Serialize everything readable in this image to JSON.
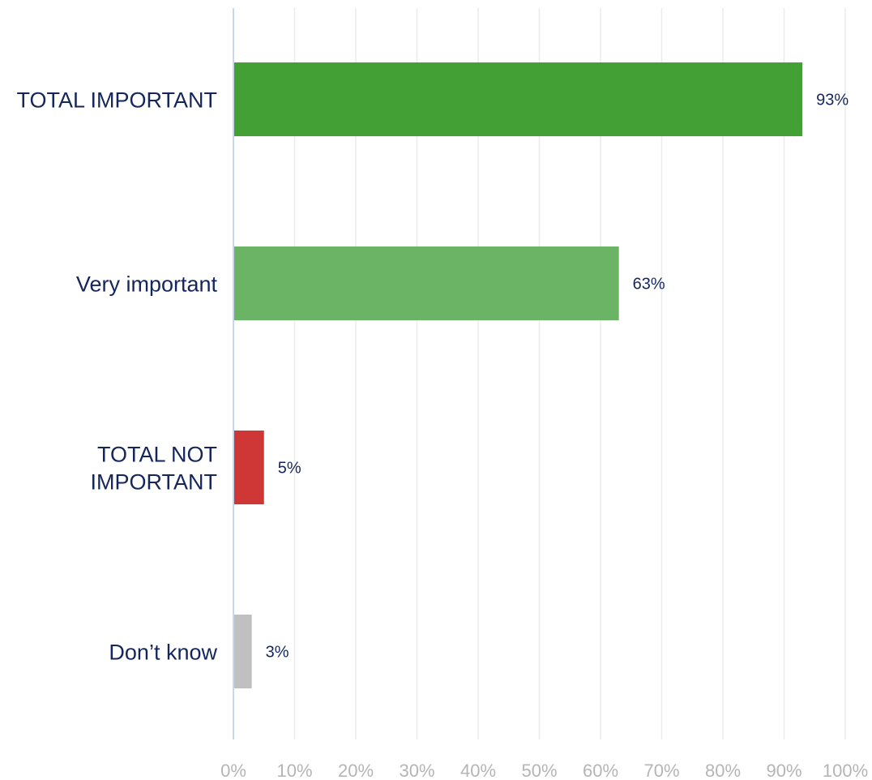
{
  "chart_data": {
    "type": "bar",
    "orientation": "horizontal",
    "categories": [
      [
        "TOTAL IMPORTANT"
      ],
      [
        "Very important"
      ],
      [
        "TOTAL NOT",
        "IMPORTANT"
      ],
      [
        "Don’t know"
      ]
    ],
    "values": [
      93,
      63,
      5,
      3
    ],
    "value_labels": [
      "93%",
      "63%",
      "5%",
      "3%"
    ],
    "colors": [
      "#43a035",
      "#6bb465",
      "#cf3636",
      "#c0c0c0"
    ],
    "xlim": [
      0,
      100
    ],
    "x_ticks": [
      0,
      10,
      20,
      30,
      40,
      50,
      60,
      70,
      80,
      90,
      100
    ],
    "x_tick_labels": [
      "0%",
      "10%",
      "20%",
      "30%",
      "40%",
      "50%",
      "60%",
      "70%",
      "80%",
      "90%",
      "100%"
    ],
    "grid": true,
    "legend": "none",
    "title": "",
    "xlabel": "",
    "ylabel": ""
  }
}
